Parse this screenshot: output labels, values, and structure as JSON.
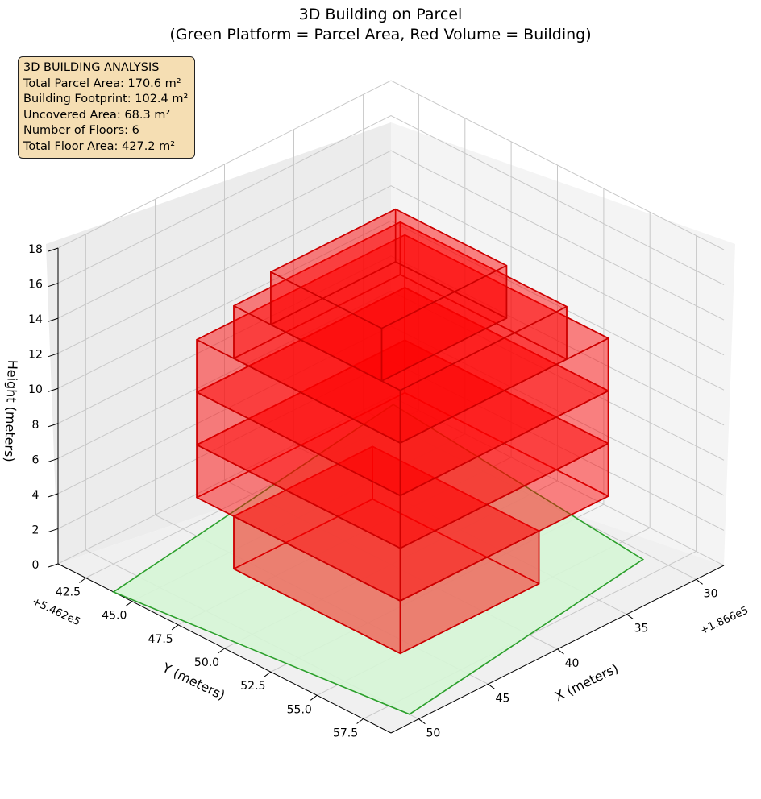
{
  "title_line1": "3D Building on Parcel",
  "title_line2": "(Green Platform = Parcel Area, Red Volume = Building)",
  "info": {
    "heading": "3D BUILDING ANALYSIS",
    "parcel_area": "Total Parcel Area: 170.6 m²",
    "footprint": "Building Footprint: 102.4 m²",
    "uncovered": "Uncovered Area: 68.3 m²",
    "floors": "Number of Floors: 6",
    "floor_area": "Total Floor Area: 427.2 m²"
  },
  "chart_data": {
    "type": "3d-box",
    "title": "3D Building on Parcel",
    "subtitle": "(Green Platform = Parcel Area, Red Volume = Building)",
    "xlabel": "X (meters)",
    "ylabel": "Y (meters)",
    "zlabel": "Height (meters)",
    "x_offset_label": "+1.866e5",
    "y_offset_label": "+5.462e5",
    "x_ticks": [
      "30",
      "35",
      "40",
      "45",
      "50"
    ],
    "y_ticks": [
      "42.5",
      "45.0",
      "47.5",
      "50.0",
      "52.5",
      "55.0",
      "57.5"
    ],
    "z_ticks": [
      "0",
      "2",
      "4",
      "6",
      "8",
      "10",
      "12",
      "14",
      "16",
      "18"
    ],
    "colors": {
      "parcel": "#2ca02c",
      "parcel_fill": "#d6f5d6",
      "building": "#ff0000",
      "building_edge": "#cc0000",
      "info_bg": "#f5deb3"
    },
    "parcel": {
      "polygon_xy": [
        [
          28.5,
          41.5
        ],
        [
          52.0,
          44.0
        ],
        [
          50.0,
          58.5
        ],
        [
          30.5,
          56.5
        ]
      ],
      "z": 0
    },
    "floors": [
      {
        "floor": 1,
        "z_bottom": 0,
        "z_top": 3,
        "x_range": [
          36,
          46
        ],
        "y_range": [
          46,
          55
        ]
      },
      {
        "floor": 2,
        "z_bottom": 3,
        "z_top": 6,
        "x_range": [
          31,
          46
        ],
        "y_range": [
          44,
          55
        ]
      },
      {
        "floor": 3,
        "z_bottom": 6,
        "z_top": 9,
        "x_range": [
          31,
          46
        ],
        "y_range": [
          44,
          55
        ]
      },
      {
        "floor": 4,
        "z_bottom": 9,
        "z_top": 12,
        "x_range": [
          31,
          46
        ],
        "y_range": [
          44,
          55
        ]
      },
      {
        "floor": 5,
        "z_bottom": 12,
        "z_top": 15,
        "x_range": [
          34,
          46
        ],
        "y_range": [
          46,
          55
        ]
      },
      {
        "floor": 6,
        "z_bottom": 15,
        "z_top": 18,
        "x_range": [
          37,
          46
        ],
        "y_range": [
          48,
          54
        ]
      }
    ],
    "grid": true
  }
}
